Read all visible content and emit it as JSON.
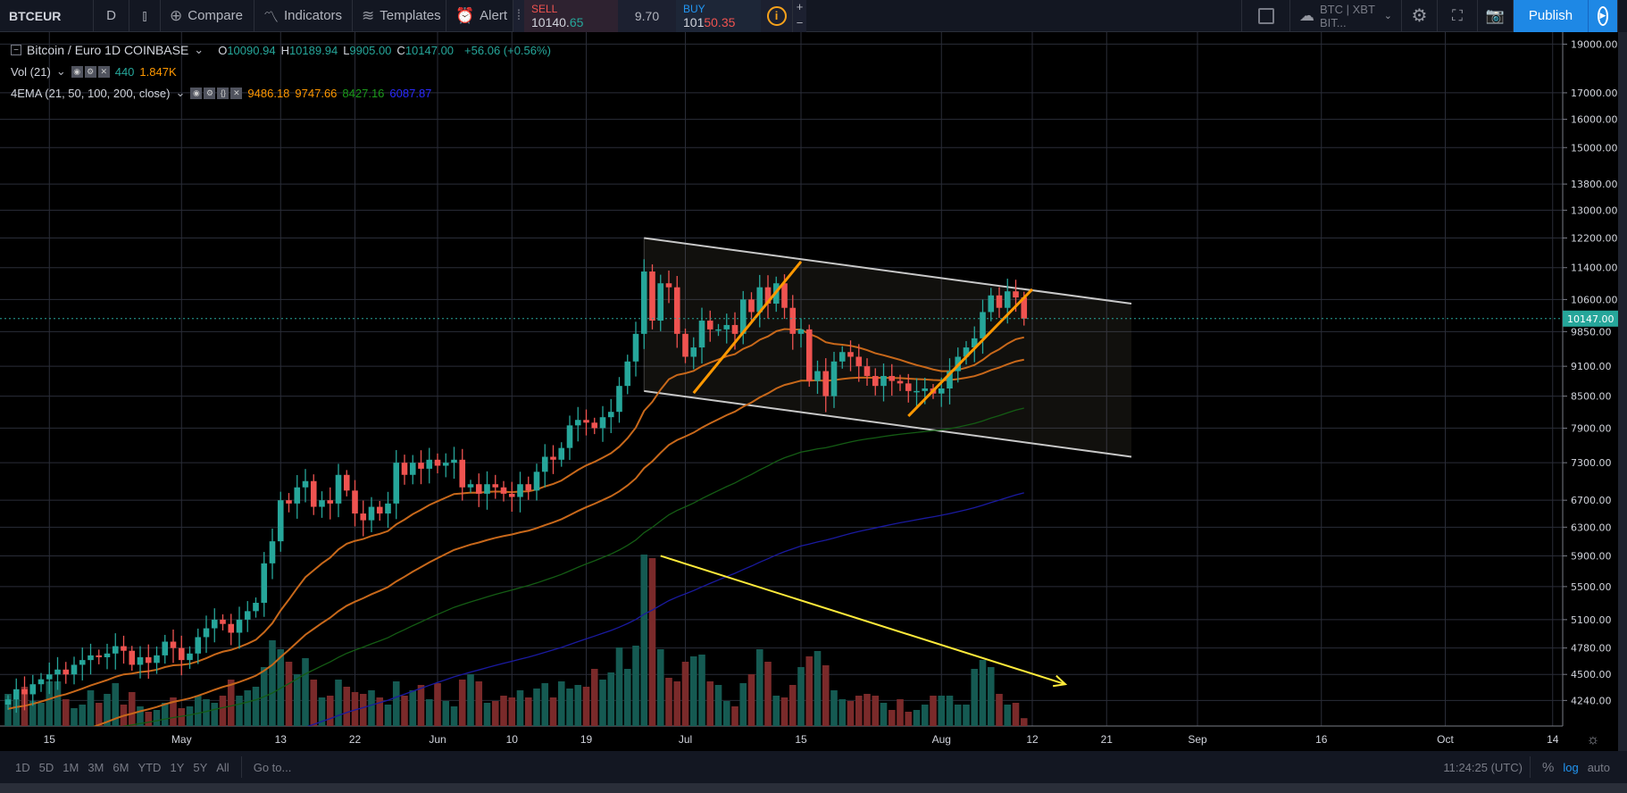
{
  "toolbar": {
    "symbol": "BTCEUR",
    "interval": "D",
    "compare": "Compare",
    "indicators": "Indicators",
    "templates": "Templates",
    "alert": "Alert",
    "sell_label": "SELL",
    "sell_price_a": "10140.",
    "sell_price_b": "65",
    "spread": "9.70",
    "buy_label": "BUY",
    "buy_price_a": "101",
    "buy_price_b": "50.35",
    "plus": "+",
    "minus": "−",
    "watch": "BTC | XBT BIT...",
    "publish": "Publish"
  },
  "legend": {
    "title": "Bitcoin / Euro  1D  COINBASE",
    "o_label": "O",
    "o": "10090.94",
    "h_label": "H",
    "h": "10189.94",
    "l_label": "L",
    "l": "9905.00",
    "c_label": "C",
    "c": "10147.00",
    "change": "+56.06 (+0.56%)",
    "vol_title": "Vol (21)",
    "vol_value": "440",
    "vol_ma": "1.847K",
    "ema_title": "4EMA (21, 50, 100, 200, close)",
    "ema21": "9486.18",
    "ema50": "9747.66",
    "ema100": "8427.16",
    "ema200": "6087.87"
  },
  "colors": {
    "up": "#26a69a",
    "down": "#ef5350",
    "vol_up": "#155a52",
    "vol_down": "#7a2a2a",
    "ema21": "#c8681a",
    "ema50": "#c8681a",
    "ema100": "#145c14",
    "ema200": "#1a1aa0",
    "accent": "#1e88e5"
  },
  "bottom": {
    "ranges": [
      "1D",
      "5D",
      "1M",
      "3M",
      "6M",
      "YTD",
      "1Y",
      "5Y",
      "All"
    ],
    "goto": "Go to...",
    "time": "11:24:25 (UTC)",
    "percent": "%",
    "log": "log",
    "auto": "auto"
  },
  "chart_data": {
    "type": "candlestick",
    "scale": "log",
    "start_date": "2019-04-10",
    "current_price": "10147.00",
    "price_ticks": [
      "19000.00",
      "17000.00",
      "16000.00",
      "15000.00",
      "13800.00",
      "13000.00",
      "12200.00",
      "11400.00",
      "10600.00",
      "9850.00",
      "9100.00",
      "8500.00",
      "7900.00",
      "7300.00",
      "6700.00",
      "6300.00",
      "5900.00",
      "5500.00",
      "5100.00",
      "4780.00",
      "4500.00",
      "4240.00"
    ],
    "time_ticks": [
      {
        "label": "15",
        "date": "2019-04-15"
      },
      {
        "label": "May",
        "date": "2019-05-01"
      },
      {
        "label": "13",
        "date": "2019-05-13"
      },
      {
        "label": "22",
        "date": "2019-05-22"
      },
      {
        "label": "Jun",
        "date": "2019-06-01"
      },
      {
        "label": "10",
        "date": "2019-06-10"
      },
      {
        "label": "19",
        "date": "2019-06-19"
      },
      {
        "label": "Jul",
        "date": "2019-07-01"
      },
      {
        "label": "15",
        "date": "2019-07-15"
      },
      {
        "label": "Aug",
        "date": "2019-08-01"
      },
      {
        "label": "12",
        "date": "2019-08-12"
      },
      {
        "label": "21",
        "date": "2019-08-21"
      },
      {
        "label": "Sep",
        "date": "2019-09-01"
      },
      {
        "label": "16",
        "date": "2019-09-16"
      },
      {
        "label": "Oct",
        "date": "2019-10-01"
      },
      {
        "label": "14",
        "date": "2019-10-14"
      }
    ],
    "first_open": 4200,
    "closes": [
      4250,
      4350,
      4300,
      4400,
      4450,
      4500,
      4550,
      4500,
      4600,
      4650,
      4700,
      4680,
      4720,
      4800,
      4750,
      4600,
      4680,
      4620,
      4700,
      4850,
      4780,
      4650,
      4720,
      4900,
      5000,
      5100,
      5050,
      4950,
      5100,
      5200,
      5300,
      5800,
      6100,
      6700,
      6650,
      6900,
      7000,
      6600,
      6700,
      6650,
      7100,
      6850,
      6500,
      6400,
      6600,
      6500,
      6650,
      7300,
      7100,
      7300,
      7200,
      7350,
      7250,
      7300,
      7350,
      6900,
      6950,
      6800,
      6950,
      6900,
      6800,
      6750,
      6950,
      6850,
      7150,
      7400,
      7350,
      7550,
      7950,
      8050,
      8000,
      7900,
      8100,
      8200,
      8700,
      9200,
      9800,
      11300,
      10100,
      11000,
      10900,
      9800,
      9300,
      9500,
      10100,
      9900,
      9900,
      10000,
      9800,
      10600,
      10300,
      10900,
      10500,
      11000,
      10400,
      9800,
      9900,
      8800,
      9000,
      8500,
      9200,
      9400,
      9300,
      9100,
      8900,
      8700,
      8900,
      8800,
      8750,
      8600,
      8600,
      8650,
      8550,
      8650,
      9000,
      9300,
      9500,
      9700,
      10300,
      10700,
      10400,
      10800,
      10650,
      10147
    ],
    "volumes_k": [
      1.8,
      1.5,
      2.2,
      1.4,
      1.3,
      2.5,
      2.5,
      1.5,
      1.0,
      1.2,
      2.0,
      1.3,
      1.8,
      2.4,
      1.2,
      1.9,
      1.1,
      0.8,
      0.9,
      1.3,
      1.6,
      1.0,
      1.1,
      1.7,
      1.5,
      1.3,
      1.7,
      2.6,
      1.7,
      2.0,
      2.2,
      3.3,
      4.8,
      4.3,
      3.6,
      2.9,
      3.8,
      2.6,
      1.6,
      1.7,
      2.6,
      2.2,
      1.9,
      1.8,
      2.0,
      1.6,
      1.2,
      2.5,
      1.7,
      2.0,
      2.3,
      1.5,
      2.4,
      1.4,
      1.1,
      2.6,
      2.9,
      2.5,
      1.3,
      1.4,
      1.7,
      1.6,
      2.0,
      1.6,
      2.1,
      2.4,
      1.6,
      2.5,
      2.1,
      2.3,
      2.2,
      3.2,
      2.6,
      3.0,
      4.4,
      3.2,
      4.5,
      9.6,
      9.4,
      4.3,
      2.7,
      2.5,
      3.6,
      3.9,
      4.0,
      2.5,
      2.3,
      1.4,
      1.1,
      2.4,
      2.9,
      4.3,
      3.6,
      1.7,
      1.6,
      2.3,
      3.3,
      3.9,
      4.2,
      3.4,
      2.0,
      1.5,
      1.4,
      1.7,
      1.8,
      1.7,
      1.3,
      0.9,
      1.5,
      0.8,
      0.9,
      1.2,
      1.7,
      1.7,
      1.7,
      1.2,
      1.2,
      3.2,
      3.7,
      3.3,
      1.8,
      1.2,
      1.3,
      0.44
    ],
    "ema_periods": [
      21,
      50,
      100,
      200
    ],
    "drawings": {
      "channel": {
        "top": [
          [
            "2019-06-26",
            12200
          ],
          [
            "2019-08-24",
            10500
          ]
        ],
        "bottom": [
          [
            "2019-06-26",
            8600
          ],
          [
            "2019-08-24",
            7400
          ]
        ]
      },
      "trendlines": [
        [
          [
            "2019-07-02",
            8560
          ],
          [
            "2019-07-15",
            11560
          ]
        ],
        [
          [
            "2019-07-28",
            8120
          ],
          [
            "2019-08-12",
            10850
          ]
        ]
      ],
      "arrow": [
        [
          "2019-06-28",
          5900
        ],
        [
          "2019-08-16",
          4400
        ]
      ]
    }
  }
}
